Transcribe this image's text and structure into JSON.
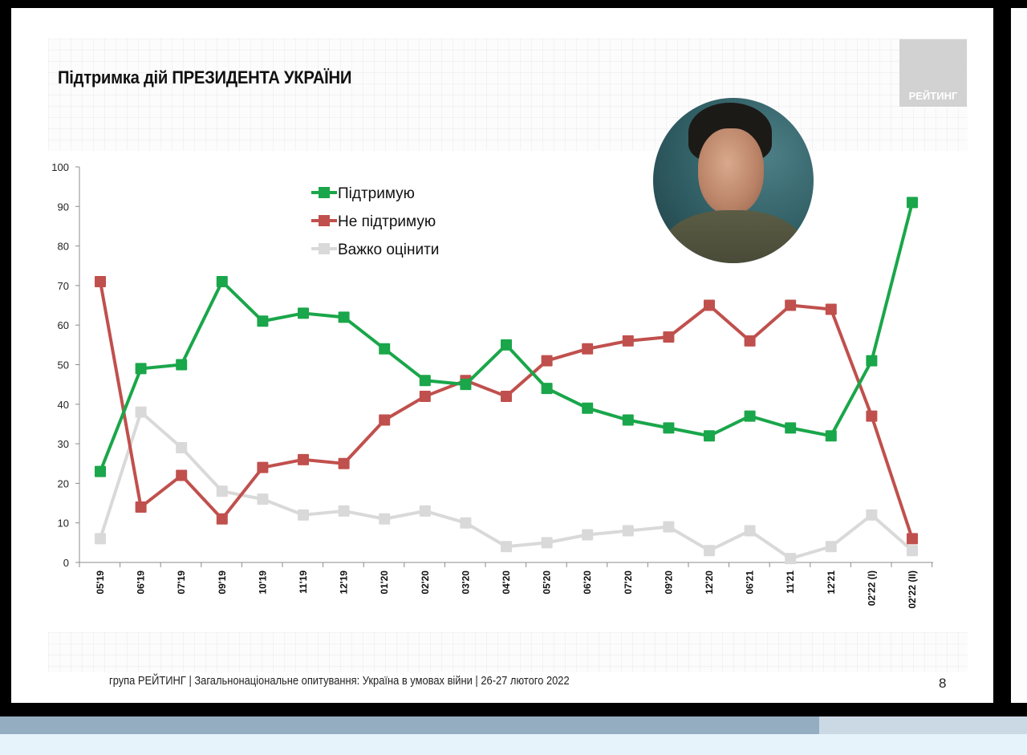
{
  "slide": {
    "title": "Підтримка дій ПРЕЗИДЕНТА УКРАЇНИ",
    "logo_text": "РЕЙТИНГ",
    "footer": "група РЕЙТИНГ | Загальнонаціональне опитування: Україна в умовах війни | 26-27 лютого 2022",
    "page_number": "8"
  },
  "chart_data": {
    "type": "line",
    "title": "Підтримка дій ПРЕЗИДЕНТА УКРАЇНИ",
    "xlabel": "",
    "ylabel": "",
    "ylim": [
      0,
      100
    ],
    "yticks": [
      0,
      10,
      20,
      30,
      40,
      50,
      60,
      70,
      80,
      90,
      100
    ],
    "grid": false,
    "legend_position": "top-center",
    "categories": [
      "05'19",
      "06'19",
      "07'19",
      "09'19",
      "10'19",
      "11'19",
      "12'19",
      "01'20",
      "02'20",
      "03'20",
      "04'20",
      "05'20",
      "06'20",
      "07'20",
      "09'20",
      "12'20",
      "06'21",
      "11'21",
      "12'21",
      "02'22 (I)",
      "02'22 (II)"
    ],
    "series": [
      {
        "name": "Підтримую",
        "color": "#1aa64a",
        "values": [
          23,
          49,
          50,
          71,
          61,
          63,
          62,
          54,
          46,
          45,
          55,
          44,
          39,
          36,
          34,
          32,
          37,
          34,
          32,
          51,
          91
        ]
      },
      {
        "name": "Не підтримую",
        "color": "#c0504d",
        "values": [
          71,
          14,
          22,
          11,
          24,
          26,
          25,
          36,
          42,
          46,
          42,
          51,
          54,
          56,
          57,
          65,
          56,
          65,
          64,
          37,
          6
        ]
      },
      {
        "name": "Важко оцінити",
        "color": "#d9d9d9",
        "values": [
          6,
          38,
          29,
          18,
          16,
          12,
          13,
          11,
          13,
          10,
          4,
          5,
          7,
          8,
          9,
          3,
          8,
          1,
          4,
          12,
          3
        ]
      }
    ]
  }
}
